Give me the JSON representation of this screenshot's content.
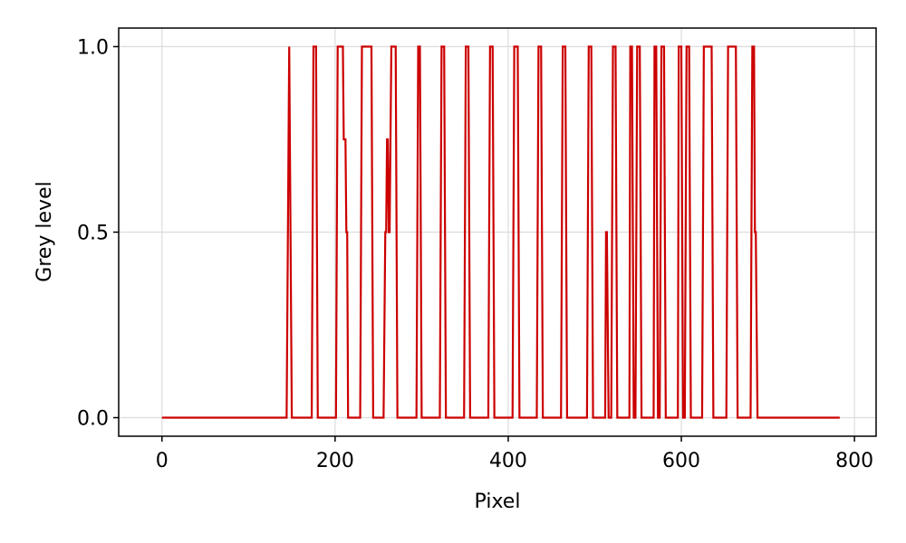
{
  "chart_data": {
    "type": "line",
    "title": "",
    "xlabel": "Pixel",
    "ylabel": "Grey level",
    "xlim": [
      -50,
      825
    ],
    "ylim": [
      -0.05,
      1.05
    ],
    "xticks": [
      0,
      200,
      400,
      600,
      800
    ],
    "xtick_labels": [
      "0",
      "200",
      "400",
      "600",
      "800"
    ],
    "yticks": [
      0.0,
      0.5,
      1.0
    ],
    "ytick_labels": [
      "0.0",
      "0.5",
      "1.0"
    ],
    "grid": true,
    "legend": "none",
    "series": [
      {
        "color": "#cc0000",
        "points": [
          [
            0,
            0
          ],
          [
            144,
            0
          ],
          [
            147,
            1
          ],
          [
            150,
            0
          ],
          [
            173,
            0
          ],
          [
            175,
            1
          ],
          [
            178,
            1
          ],
          [
            180,
            0
          ],
          [
            201,
            0
          ],
          [
            203,
            1
          ],
          [
            209,
            1
          ],
          [
            210,
            0.75
          ],
          [
            212,
            0.75
          ],
          [
            213,
            0.5
          ],
          [
            214,
            0.5
          ],
          [
            215,
            0
          ],
          [
            229,
            0
          ],
          [
            231,
            1
          ],
          [
            242,
            1
          ],
          [
            244,
            0
          ],
          [
            256,
            0
          ],
          [
            258,
            0.5
          ],
          [
            259,
            0.5
          ],
          [
            260,
            0.75
          ],
          [
            261,
            0.75
          ],
          [
            262,
            0.5
          ],
          [
            263,
            0.5
          ],
          [
            265,
            1
          ],
          [
            270,
            1
          ],
          [
            272,
            0
          ],
          [
            294,
            0
          ],
          [
            296,
            1
          ],
          [
            298,
            1
          ],
          [
            300,
            0
          ],
          [
            321,
            0
          ],
          [
            323,
            1
          ],
          [
            326,
            1
          ],
          [
            328,
            0
          ],
          [
            349,
            0
          ],
          [
            351,
            1
          ],
          [
            354,
            1
          ],
          [
            356,
            0
          ],
          [
            377,
            0
          ],
          [
            379,
            1
          ],
          [
            382,
            1
          ],
          [
            384,
            0
          ],
          [
            405,
            0
          ],
          [
            407,
            1
          ],
          [
            411,
            1
          ],
          [
            413,
            0
          ],
          [
            433,
            0
          ],
          [
            435,
            1
          ],
          [
            438,
            1
          ],
          [
            440,
            0
          ],
          [
            461,
            0
          ],
          [
            463,
            1
          ],
          [
            466,
            1
          ],
          [
            468,
            0
          ],
          [
            491,
            0
          ],
          [
            493,
            1
          ],
          [
            496,
            1
          ],
          [
            498,
            0
          ],
          [
            512,
            0
          ],
          [
            513,
            0.5
          ],
          [
            514,
            0.5
          ],
          [
            516,
            0
          ],
          [
            519,
            0
          ],
          [
            521,
            1
          ],
          [
            524,
            1
          ],
          [
            526,
            0
          ],
          [
            540,
            0
          ],
          [
            541,
            1
          ],
          [
            543,
            1
          ],
          [
            545,
            0
          ],
          [
            547,
            0
          ],
          [
            549,
            1
          ],
          [
            552,
            1
          ],
          [
            554,
            0
          ],
          [
            568,
            0
          ],
          [
            569,
            1
          ],
          [
            571,
            1
          ],
          [
            573,
            0
          ],
          [
            575,
            0
          ],
          [
            577,
            1
          ],
          [
            580,
            1
          ],
          [
            582,
            0
          ],
          [
            596,
            0
          ],
          [
            597,
            1
          ],
          [
            600,
            1
          ],
          [
            602,
            0
          ],
          [
            604,
            0
          ],
          [
            606,
            1
          ],
          [
            609,
            1
          ],
          [
            611,
            0
          ],
          [
            624,
            0
          ],
          [
            626,
            1
          ],
          [
            635,
            1
          ],
          [
            637,
            0
          ],
          [
            652,
            0
          ],
          [
            654,
            1
          ],
          [
            663,
            1
          ],
          [
            665,
            0
          ],
          [
            680,
            0
          ],
          [
            682,
            1
          ],
          [
            684,
            1
          ],
          [
            685,
            0.5
          ],
          [
            686,
            0.5
          ],
          [
            688,
            0
          ],
          [
            783,
            0
          ]
        ]
      }
    ]
  }
}
